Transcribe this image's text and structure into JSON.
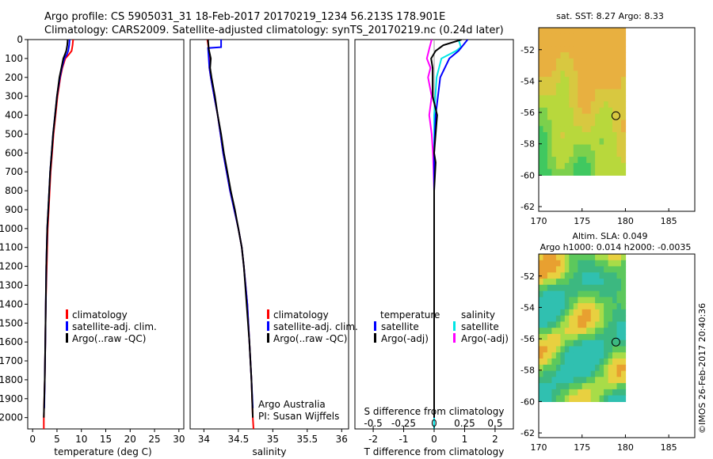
{
  "title_line1": "Argo profile: CS 5905031_31 18-Feb-2017 20170219_1234 56.213S 178.901E",
  "title_line2": "Climatology: CARS2009. Satellite-adjusted climatology: synTS_20170219.nc (0.24d later)",
  "footer_credit": "©IMOS 26-Feb-2017 20:40:36",
  "colors": {
    "climatology": "#ff0000",
    "satellite": "#0000ff",
    "argo": "#000000",
    "sal_satellite": "#00e5e5",
    "sal_argo": "#ff00ff"
  },
  "chart_data": [
    {
      "type": "line",
      "name": "temperature",
      "xlabel": "temperature (deg C)",
      "ylabel": "",
      "xlim": [
        -1,
        31
      ],
      "ylim": [
        2060,
        0
      ],
      "xticks": [
        "0",
        "5",
        "10",
        "15",
        "20",
        "25",
        "30"
      ],
      "yticks": [
        "0",
        "100",
        "200",
        "300",
        "400",
        "500",
        "600",
        "700",
        "800",
        "900",
        "1000",
        "1100",
        "1200",
        "1300",
        "1400",
        "1500",
        "1600",
        "1700",
        "1800",
        "1900",
        "2000"
      ],
      "legend": [
        "climatology",
        "satellite-adj. clim.",
        "Argo(..raw -QC)"
      ],
      "series": [
        {
          "name": "climatology",
          "depth": [
            0,
            30,
            60,
            80,
            100,
            150,
            200,
            300,
            400,
            500,
            600,
            700,
            800,
            900,
            1000,
            1200,
            1400,
            1600,
            1800,
            2000,
            2060
          ],
          "values": [
            8.3,
            8.2,
            8.0,
            7.4,
            6.7,
            6.1,
            5.7,
            5.1,
            4.7,
            4.3,
            4.0,
            3.7,
            3.5,
            3.3,
            3.1,
            2.9,
            2.7,
            2.6,
            2.5,
            2.3,
            2.3
          ]
        },
        {
          "name": "satellite-adj. clim.",
          "depth": [
            0,
            30,
            60,
            80,
            100,
            150,
            200,
            300,
            400,
            500,
            600,
            700,
            800,
            900,
            1000,
            1200,
            1400,
            1600,
            1800,
            1950
          ],
          "values": [
            7.6,
            7.5,
            7.3,
            7.0,
            6.5,
            6.0,
            5.6,
            5.0,
            4.6,
            4.2,
            3.9,
            3.6,
            3.4,
            3.2,
            3.0,
            2.8,
            2.7,
            2.6,
            2.5,
            2.4
          ]
        },
        {
          "name": "Argo(..raw -QC)",
          "depth": [
            0,
            30,
            60,
            80,
            100,
            150,
            200,
            300,
            400,
            500,
            600,
            700,
            800,
            900,
            1000,
            1200,
            1400,
            1600,
            1800,
            2000
          ],
          "values": [
            7.2,
            7.1,
            6.9,
            6.6,
            6.3,
            5.9,
            5.5,
            5.0,
            4.6,
            4.2,
            3.9,
            3.6,
            3.4,
            3.2,
            3.0,
            2.8,
            2.7,
            2.6,
            2.5,
            2.3
          ]
        }
      ]
    },
    {
      "type": "line",
      "name": "salinity",
      "xlabel": "salinity",
      "ylabel": "",
      "xlim": [
        33.8,
        36.1
      ],
      "ylim": [
        2060,
        0
      ],
      "xticks": [
        "34",
        "34.5",
        "35",
        "35.5",
        "36"
      ],
      "legend": [
        "climatology",
        "satellite-adj. clim.",
        "Argo(..raw -QC)"
      ],
      "annotation_line1": "Argo Australia",
      "annotation_line2": "PI: Susan Wijffels",
      "series": [
        {
          "name": "climatology",
          "depth": [
            0,
            50,
            100,
            150,
            200,
            300,
            400,
            500,
            600,
            700,
            800,
            900,
            1000,
            1100,
            1200,
            1400,
            1600,
            1800,
            2000,
            2060
          ],
          "values": [
            34.05,
            34.07,
            34.08,
            34.08,
            34.1,
            34.15,
            34.2,
            34.24,
            34.28,
            34.33,
            34.38,
            34.44,
            34.5,
            34.55,
            34.58,
            34.63,
            34.66,
            34.69,
            34.71,
            34.72
          ]
        },
        {
          "name": "satellite-adj. clim.",
          "depth": [
            0,
            40,
            45,
            100,
            150,
            200,
            300,
            400,
            500,
            600,
            700,
            800,
            900,
            1000,
            1100,
            1200,
            1400,
            1600,
            1800,
            1950
          ],
          "values": [
            34.25,
            34.25,
            34.06,
            34.07,
            34.08,
            34.1,
            34.15,
            34.2,
            34.24,
            34.28,
            34.33,
            34.38,
            34.44,
            34.5,
            34.55,
            34.58,
            34.63,
            34.66,
            34.69,
            34.71
          ]
        },
        {
          "name": "Argo(..raw -QC)",
          "depth": [
            0,
            50,
            100,
            150,
            200,
            300,
            400,
            500,
            600,
            700,
            800,
            900,
            1000,
            1100,
            1200,
            1400,
            1600,
            1800,
            2000
          ],
          "values": [
            34.06,
            34.07,
            34.1,
            34.09,
            34.11,
            34.16,
            34.2,
            34.25,
            34.29,
            34.34,
            34.39,
            34.45,
            34.5,
            34.55,
            34.58,
            34.62,
            34.66,
            34.69,
            34.71
          ]
        }
      ]
    },
    {
      "type": "line",
      "name": "difference",
      "xlabel": "T difference from climatology",
      "x2label": "S difference from climatology",
      "xlim": [
        -2.6,
        2.6
      ],
      "ylim": [
        2060,
        0
      ],
      "xticks": [
        "-2",
        "-1",
        "0",
        "1",
        "2"
      ],
      "x2ticks": [
        "-0.5",
        "-0.25",
        "0",
        "0.25",
        "0.5"
      ],
      "legend_headers": [
        "temperature",
        "salinity"
      ],
      "legend": [
        "satellite",
        "Argo(-adj)",
        "satellite",
        "Argo(-adj)"
      ],
      "series": [
        {
          "name": "temperature satellite",
          "depth": [
            0,
            40,
            60,
            100,
            200,
            400,
            600,
            800,
            1000,
            1400,
            1800,
            2000
          ],
          "values": [
            1.1,
            0.9,
            0.8,
            0.5,
            0.2,
            0.05,
            0.0,
            0.0,
            0.0,
            0.0,
            0.0,
            0.0
          ]
        },
        {
          "name": "temperature Argo(-adj)",
          "depth": [
            0,
            30,
            60,
            100,
            150,
            300,
            400,
            600,
            650,
            800,
            1000,
            1400,
            1800,
            2000
          ],
          "values": [
            0.9,
            0.3,
            0.05,
            -0.1,
            -0.05,
            -0.05,
            0.1,
            0.0,
            0.05,
            0.0,
            0.0,
            0.0,
            0.0,
            0.0
          ]
        },
        {
          "name": "salinity satellite",
          "depth": [
            0,
            40,
            60,
            100,
            200,
            400,
            600,
            800,
            1000,
            1400,
            1800,
            2060
          ],
          "values": [
            0.2,
            0.22,
            0.18,
            0.06,
            0.02,
            0.0,
            0.0,
            0.0,
            0.0,
            0.0,
            0.0,
            0.0
          ]
        },
        {
          "name": "salinity Argo(-adj)",
          "depth": [
            0,
            50,
            100,
            150,
            200,
            300,
            400,
            500,
            600,
            800,
            1000,
            1400,
            1800,
            2000
          ],
          "values": [
            -0.02,
            -0.04,
            -0.06,
            -0.03,
            -0.05,
            -0.02,
            -0.04,
            -0.02,
            -0.01,
            0.0,
            0.0,
            0.0,
            0.0,
            0.0
          ]
        }
      ]
    },
    {
      "type": "heatmap",
      "name": "sst_map",
      "title": "sat. SST: 8.27 Argo: 8.33",
      "xlim": [
        170,
        188
      ],
      "ylim": [
        -62.3,
        -50.6
      ],
      "xticks": [
        "170",
        "175",
        "180",
        "185"
      ],
      "yticks": [
        "-52",
        "-54",
        "-56",
        "-58",
        "-60",
        "-62"
      ],
      "marker_lon": 178.9,
      "marker_lat": -56.21
    },
    {
      "type": "heatmap",
      "name": "sla_map",
      "title": "Altim. SLA: 0.049",
      "subtitle": "Argo h1000: 0.014 h2000: -0.0035",
      "xlim": [
        170,
        188
      ],
      "ylim": [
        -62.3,
        -50.6
      ],
      "xticks": [
        "170",
        "175",
        "180",
        "185"
      ],
      "yticks": [
        "-52",
        "-54",
        "-56",
        "-58",
        "-60",
        "-62"
      ],
      "marker_lon": 178.9,
      "marker_lat": -56.21
    }
  ]
}
